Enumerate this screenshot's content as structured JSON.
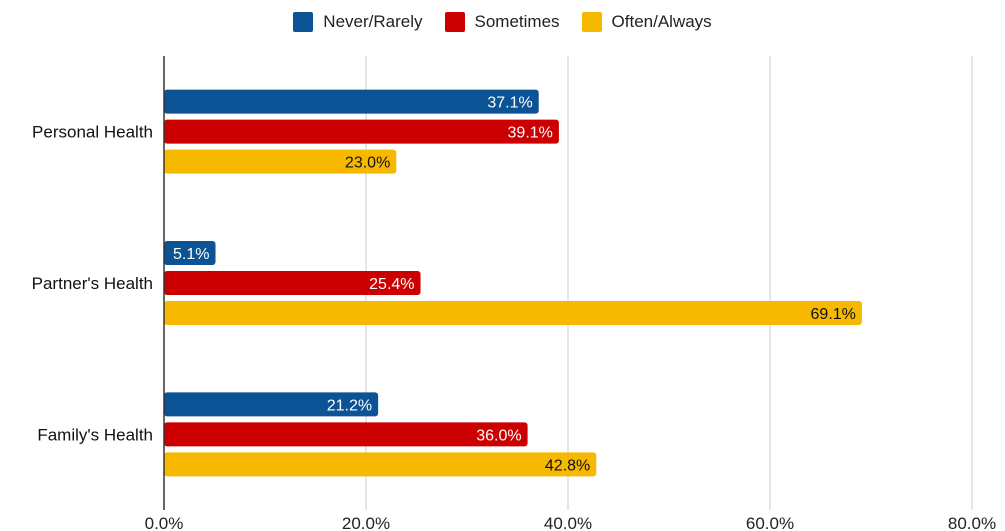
{
  "chart_data": {
    "type": "bar",
    "orientation": "horizontal",
    "categories": [
      "Personal Health",
      "Partner's Health",
      "Family's Health"
    ],
    "series": [
      {
        "name": "Never/Rarely",
        "color": "#0b5394",
        "label_color": "#ffffff",
        "values": [
          37.1,
          5.1,
          21.2
        ],
        "labels": [
          "37.1%",
          "5.1%",
          "21.2%"
        ]
      },
      {
        "name": "Sometimes",
        "color": "#cc0000",
        "label_color": "#ffffff",
        "values": [
          39.1,
          25.4,
          36.0
        ],
        "labels": [
          "39.1%",
          "25.4%",
          "36.0%"
        ]
      },
      {
        "name": "Often/Always",
        "color": "#f6b900",
        "label_color": "#111111",
        "values": [
          23.0,
          69.1,
          42.8
        ],
        "labels": [
          "23.0%",
          "69.1%",
          "42.8%"
        ]
      }
    ],
    "xlim": [
      0,
      80
    ],
    "xticks": [
      0,
      20,
      40,
      60,
      80
    ],
    "xtick_labels": [
      "0.0%",
      "20.0%",
      "40.0%",
      "60.0%",
      "80.0%"
    ],
    "grid": "vertical",
    "legend_position": "top-center"
  }
}
